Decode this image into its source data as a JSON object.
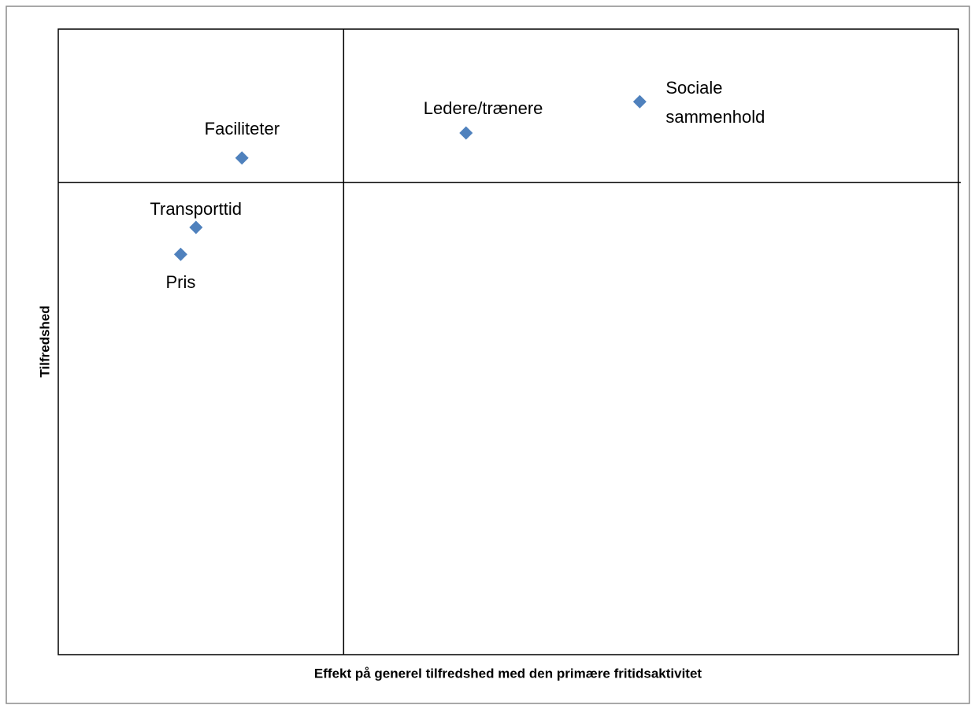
{
  "chart_data": {
    "type": "scatter",
    "xlabel": "Effekt på generel tilfredshed med den primære fritidsaktivitet",
    "ylabel": "Tilfredshed",
    "labels": [
      "Faciliteter",
      "Ledere/trænere",
      "Sociale sammenhold",
      "Transporttid",
      "Pris"
    ],
    "x": [
      20.4,
      45.3,
      64.6,
      15.3,
      13.6
    ],
    "values": [
      79.4,
      83.4,
      88.4,
      68.3,
      64.0
    ],
    "color": "#4f81bd",
    "xlim": [
      0,
      100
    ],
    "ylim": [
      0,
      100
    ],
    "reference_lines": {
      "x": 31.7,
      "y": 75.5
    }
  }
}
